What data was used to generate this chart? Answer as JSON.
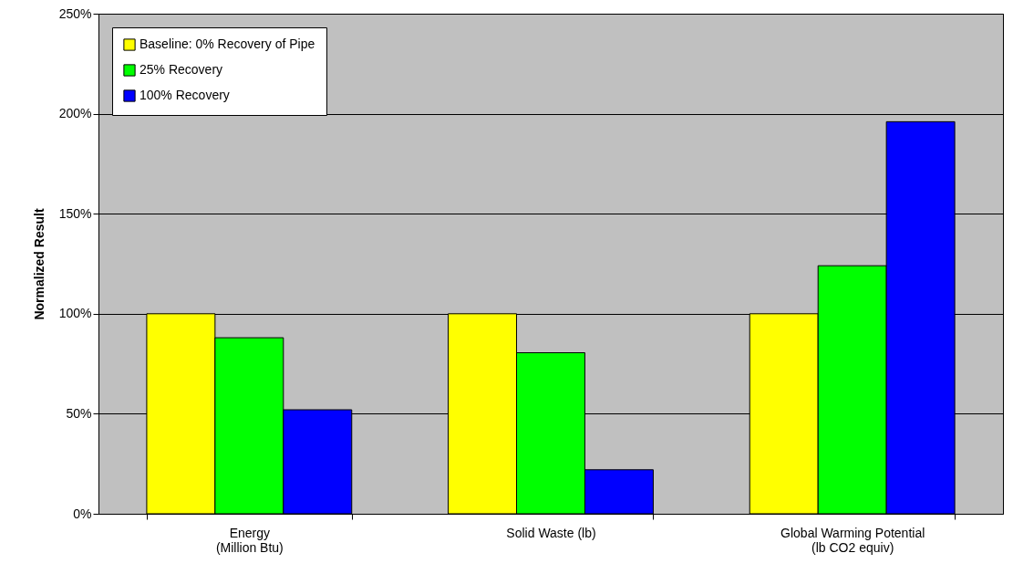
{
  "chart_data": {
    "type": "bar",
    "ylabel": "Normalized Result",
    "categories": [
      "Energy\n(Million Btu)",
      "Solid Waste (lb)",
      "Global Warming Potential\n(lb CO2 equiv)"
    ],
    "series": [
      {
        "name": "Baseline: 0% Recovery of Pipe",
        "color": "#ffff00",
        "values": [
          100,
          100,
          100
        ]
      },
      {
        "name": "25% Recovery",
        "color": "#00ff00",
        "values": [
          88,
          80.5,
          124
        ]
      },
      {
        "name": "100% Recovery",
        "color": "#0000ff",
        "values": [
          52,
          22,
          196
        ]
      }
    ],
    "ylim": [
      0,
      250
    ],
    "yticks": [
      {
        "value": 0,
        "label": "0%"
      },
      {
        "value": 50,
        "label": "50%"
      },
      {
        "value": 100,
        "label": "100%"
      },
      {
        "value": 150,
        "label": "150%"
      },
      {
        "value": 200,
        "label": "200%"
      },
      {
        "value": 250,
        "label": "250%"
      }
    ],
    "grid": "y",
    "legend": "top left"
  }
}
